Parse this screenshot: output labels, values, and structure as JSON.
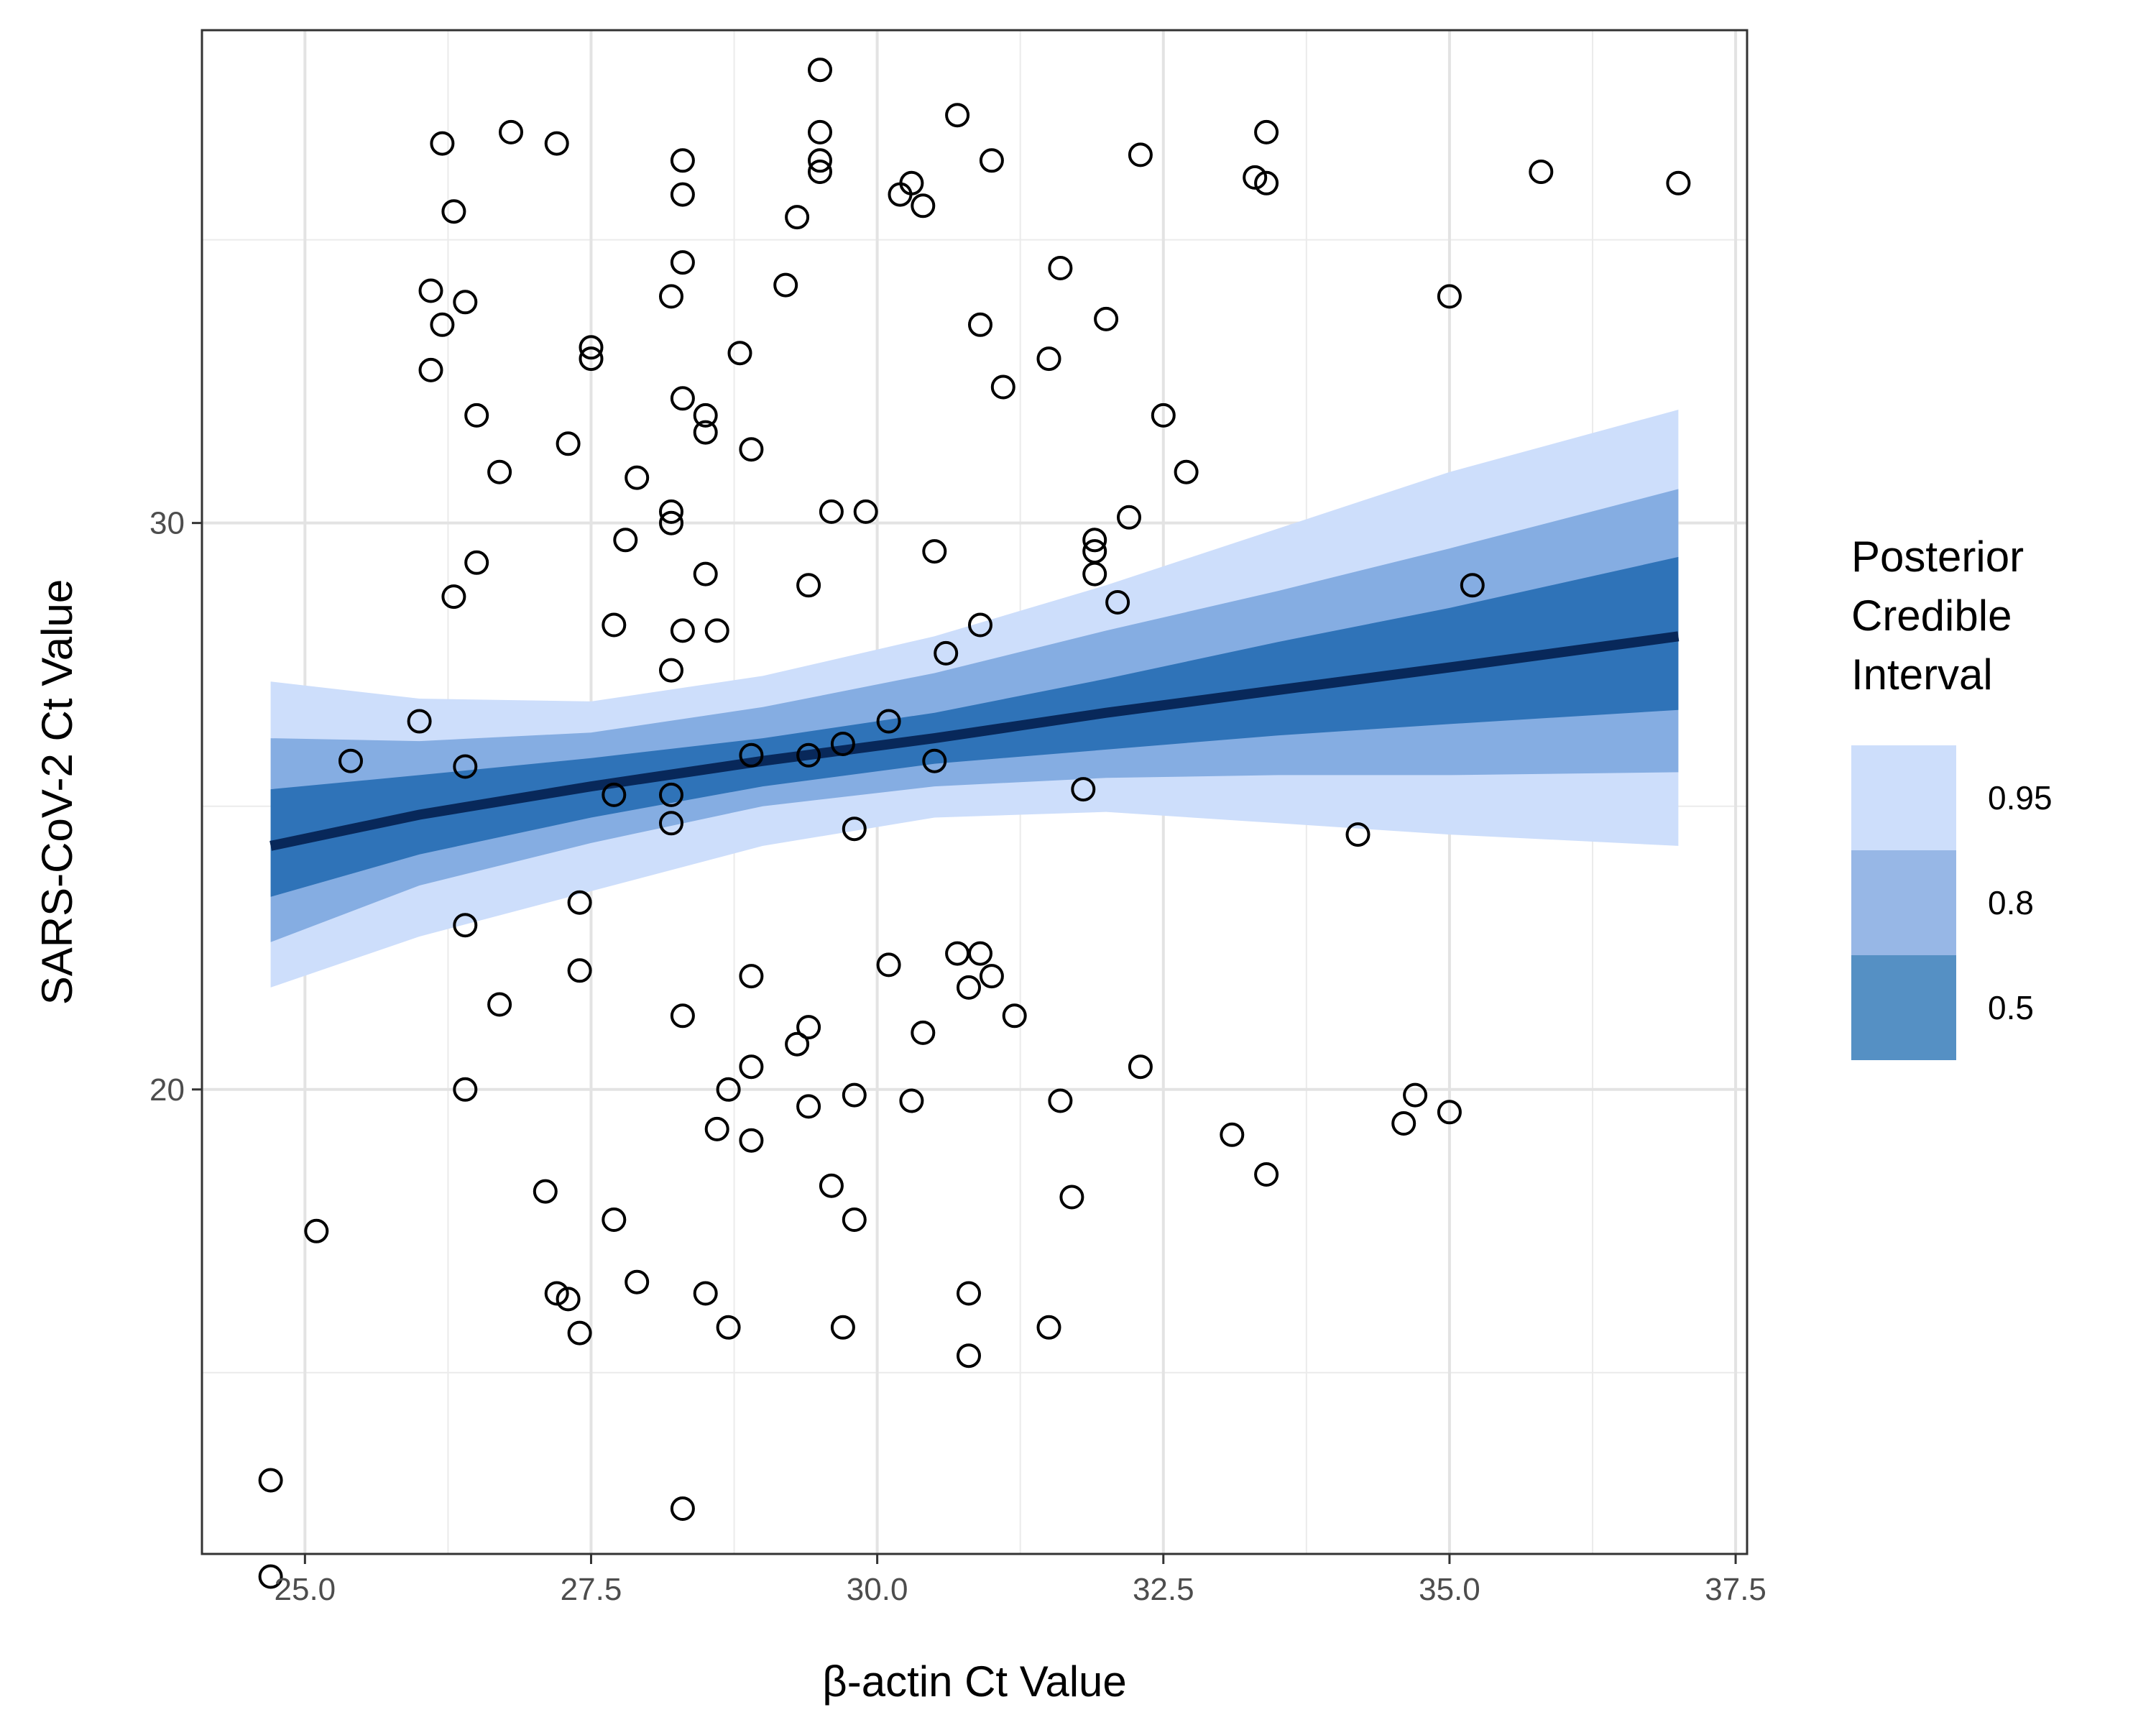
{
  "chart_data": {
    "type": "scatter",
    "xlabel": "β-actin Ct Value",
    "ylabel": "SARS-CoV-2 Ct Value",
    "xlim": [
      24.1,
      37.6
    ],
    "ylim": [
      11.8,
      38.7
    ],
    "x_ticks": [
      25,
      27.5,
      30,
      32.5,
      35,
      37.5
    ],
    "x_tick_labels": [
      "25.0",
      "27.5",
      "30.0",
      "32.5",
      "35.0",
      "37.5"
    ],
    "y_ticks": [
      20,
      30
    ],
    "y_tick_labels": [
      "20",
      "30"
    ],
    "grid": true,
    "legend": {
      "title": [
        "Posterior",
        "Credible",
        "Interval"
      ],
      "placement": "right",
      "entries": [
        {
          "label": "0.95",
          "color": "#cddefb"
        },
        {
          "label": "0.8",
          "color": "#97b7e6"
        },
        {
          "label": "0.5",
          "color": "#5590c4"
        }
      ]
    },
    "fit_line": {
      "color": "#08285a",
      "x": [
        24.7,
        26,
        27.5,
        29,
        30.5,
        32,
        33.5,
        35,
        37
      ],
      "y": [
        24.3,
        24.85,
        25.35,
        25.8,
        26.2,
        26.65,
        27.05,
        27.45,
        28.0
      ]
    },
    "bands": [
      {
        "level": "0.95",
        "color": "#cddefb",
        "x": [
          24.7,
          26,
          27.5,
          29,
          30.5,
          32,
          33.5,
          35,
          37
        ],
        "lower": [
          21.8,
          22.7,
          23.5,
          24.3,
          24.8,
          24.9,
          24.7,
          24.5,
          24.3
        ],
        "upper": [
          27.2,
          26.9,
          26.85,
          27.3,
          28.0,
          28.9,
          29.9,
          30.9,
          32.0
        ]
      },
      {
        "level": "0.8",
        "color": "#85ade2",
        "x": [
          24.7,
          26,
          27.5,
          29,
          30.5,
          32,
          33.5,
          35,
          37
        ],
        "lower": [
          22.6,
          23.6,
          24.35,
          25.0,
          25.35,
          25.5,
          25.55,
          25.55,
          25.6
        ],
        "upper": [
          26.2,
          26.15,
          26.3,
          26.75,
          27.35,
          28.1,
          28.8,
          29.55,
          30.6
        ]
      },
      {
        "level": "0.5",
        "color": "#2f73b8",
        "x": [
          24.7,
          26,
          27.5,
          29,
          30.5,
          32,
          33.5,
          35,
          37
        ],
        "lower": [
          23.4,
          24.15,
          24.8,
          25.35,
          25.75,
          26.0,
          26.25,
          26.45,
          26.7
        ],
        "upper": [
          25.3,
          25.55,
          25.85,
          26.2,
          26.65,
          27.25,
          27.9,
          28.5,
          29.4
        ]
      }
    ],
    "points": {
      "x": [
        24.7,
        24.7,
        25.1,
        25.4,
        26.0,
        26.1,
        26.1,
        26.2,
        26.2,
        26.3,
        26.3,
        26.4,
        26.4,
        26.4,
        26.4,
        26.5,
        26.5,
        26.7,
        26.7,
        26.8,
        27.1,
        27.2,
        27.2,
        27.3,
        27.3,
        27.4,
        27.4,
        27.4,
        27.5,
        27.5,
        27.7,
        27.7,
        27.7,
        27.8,
        27.9,
        27.9,
        28.2,
        28.2,
        28.2,
        28.2,
        28.2,
        28.2,
        28.3,
        28.3,
        28.3,
        28.3,
        28.3,
        28.3,
        28.3,
        28.5,
        28.5,
        28.5,
        28.5,
        28.6,
        28.6,
        28.7,
        28.7,
        28.8,
        28.9,
        28.9,
        28.9,
        28.9,
        28.9,
        29.2,
        29.3,
        29.3,
        29.4,
        29.4,
        29.4,
        29.4,
        29.5,
        29.5,
        29.5,
        29.5,
        29.6,
        29.6,
        29.7,
        29.7,
        29.8,
        29.8,
        29.8,
        29.9,
        30.1,
        30.1,
        30.2,
        30.3,
        30.3,
        30.4,
        30.4,
        30.5,
        30.5,
        30.6,
        30.7,
        30.7,
        30.8,
        30.8,
        30.8,
        30.9,
        30.9,
        30.9,
        31.0,
        31.0,
        31.1,
        31.2,
        31.5,
        31.5,
        31.6,
        31.6,
        31.7,
        31.8,
        31.9,
        31.9,
        31.9,
        32.0,
        32.1,
        32.2,
        32.3,
        32.3,
        32.5,
        32.7,
        33.1,
        33.3,
        33.4,
        33.4,
        33.4,
        34.2,
        34.6,
        34.7,
        35.0,
        35.0,
        35.2,
        35.8,
        37.0
      ],
      "y": [
        13.1,
        11.4,
        17.5,
        25.8,
        26.5,
        34.1,
        32.7,
        36.7,
        33.5,
        28.7,
        35.5,
        25.7,
        22.9,
        20.0,
        33.9,
        31.9,
        29.3,
        30.9,
        21.5,
        36.9,
        18.2,
        36.7,
        16.4,
        16.3,
        31.4,
        23.3,
        22.1,
        15.7,
        32.9,
        33.1,
        28.2,
        25.2,
        17.7,
        29.7,
        30.8,
        16.6,
        25.2,
        30.0,
        24.7,
        27.4,
        30.2,
        34.0,
        12.6,
        21.3,
        28.1,
        32.2,
        34.6,
        35.8,
        36.4,
        29.1,
        31.9,
        31.6,
        16.4,
        28.1,
        19.3,
        15.8,
        20.0,
        33.0,
        31.3,
        22.0,
        20.4,
        19.1,
        25.9,
        34.2,
        35.4,
        20.8,
        25.9,
        21.1,
        19.7,
        28.9,
        38.0,
        36.9,
        36.4,
        36.2,
        30.2,
        18.3,
        26.1,
        15.8,
        17.7,
        19.9,
        24.6,
        30.2,
        26.5,
        22.2,
        35.8,
        36.0,
        19.8,
        35.6,
        21.0,
        25.8,
        29.5,
        27.7,
        37.2,
        22.4,
        21.8,
        16.4,
        15.3,
        33.5,
        28.2,
        22.4,
        22.0,
        36.4,
        32.4,
        21.3,
        32.9,
        15.8,
        34.5,
        19.8,
        18.1,
        25.3,
        29.1,
        29.5,
        29.7,
        33.6,
        28.6,
        30.1,
        36.5,
        20.4,
        31.9,
        30.9,
        19.2,
        36.1,
        18.5,
        36.9,
        36.0,
        24.5,
        19.4,
        19.9,
        19.6,
        34.0,
        28.9,
        36.2,
        36.0
      ]
    }
  }
}
